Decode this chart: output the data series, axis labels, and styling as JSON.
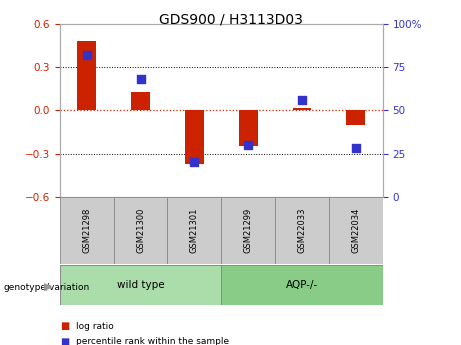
{
  "title": "GDS900 / H3113D03",
  "samples": [
    "GSM21298",
    "GSM21300",
    "GSM21301",
    "GSM21299",
    "GSM22033",
    "GSM22034"
  ],
  "log_ratio": [
    0.48,
    0.13,
    -0.375,
    -0.245,
    0.02,
    -0.105
  ],
  "percentile_rank": [
    82,
    68,
    20,
    30,
    56,
    28
  ],
  "ylim_left": [
    -0.6,
    0.6
  ],
  "ylim_right": [
    0,
    100
  ],
  "yticks_left": [
    -0.6,
    -0.3,
    0.0,
    0.3,
    0.6
  ],
  "yticks_right": [
    0,
    25,
    50,
    75,
    100
  ],
  "log_ratio_color": "#cc2200",
  "percentile_color": "#3333cc",
  "zero_line_color": "#cc2200",
  "wildtype_label": "wild type",
  "aqp_label": "AQP-/-",
  "genotype_label": "genotype/variation",
  "wildtype_color": "#aaddaa",
  "aqp_color": "#88cc88",
  "sample_box_color": "#cccccc",
  "legend_log_ratio": "log ratio",
  "legend_percentile": "percentile rank within the sample",
  "bg_color": "#ffffff"
}
